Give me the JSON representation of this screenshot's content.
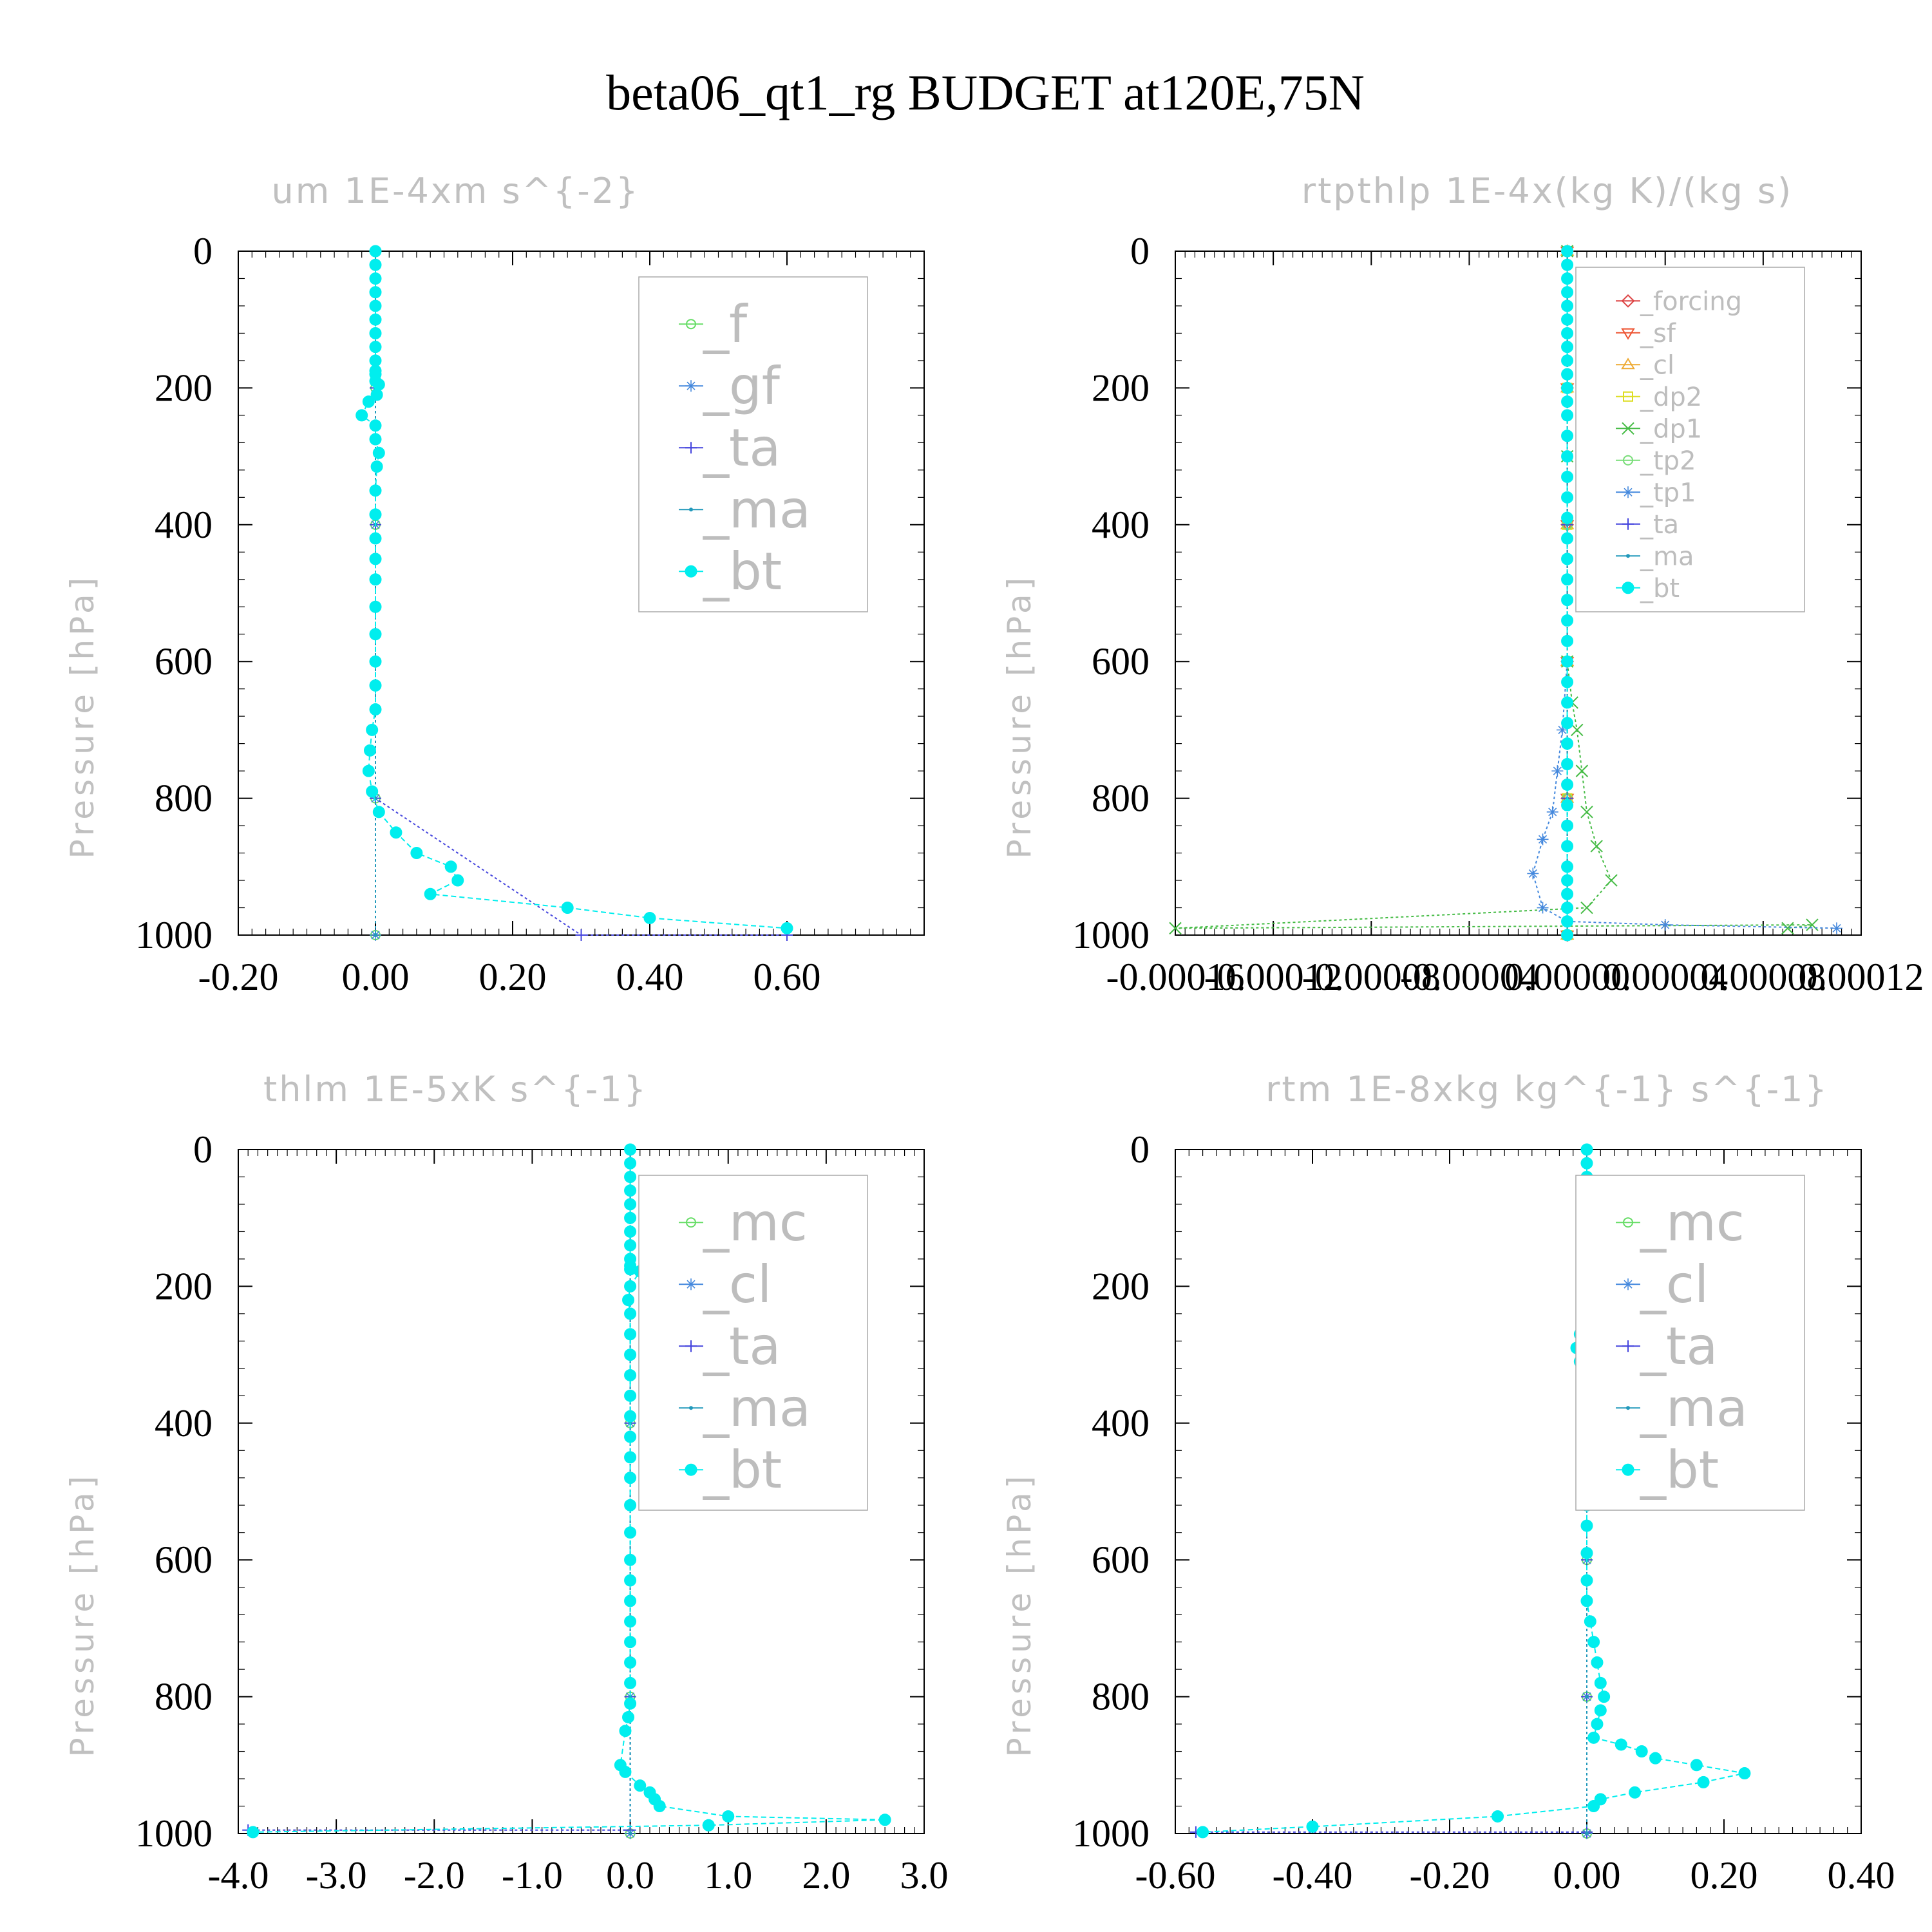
{
  "figure": {
    "title": "beta06_qt1_rg  BUDGET at120E,75N"
  },
  "chart_data": [
    {
      "type": "line",
      "title": "um   1E-4xm s^{-2}",
      "xlabel": "",
      "ylabel": "Pressure [hPa]",
      "xlim": [
        -0.2,
        0.8
      ],
      "ylim": [
        1000,
        0
      ],
      "xticks": [
        "-0.20",
        "0.00",
        "0.20",
        "0.40",
        "0.60"
      ],
      "xtick_values": [
        -0.2,
        0.0,
        0.2,
        0.4,
        0.6
      ],
      "yticks": [
        "0",
        "200",
        "400",
        "600",
        "800",
        "1000"
      ],
      "ytick_values": [
        0,
        200,
        400,
        600,
        800,
        1000
      ],
      "legend_position": "top-right",
      "legend_font": 80,
      "series": [
        {
          "name": "_f",
          "color": "#66dd66",
          "marker": "circle",
          "x": [
            0,
            0,
            0,
            0,
            0,
            0
          ],
          "y": [
            0,
            200,
            400,
            600,
            800,
            1000
          ]
        },
        {
          "name": "_gf",
          "color": "#4488dd",
          "marker": "star",
          "x": [
            0,
            0,
            0,
            0,
            0,
            0
          ],
          "y": [
            0,
            200,
            400,
            600,
            800,
            1000
          ]
        },
        {
          "name": "_ta",
          "color": "#4444dd",
          "marker": "plus",
          "x": [
            0,
            0,
            0,
            0,
            0,
            0.3,
            0.6
          ],
          "y": [
            0,
            200,
            400,
            600,
            800,
            1000,
            1000
          ]
        },
        {
          "name": "_ma",
          "color": "#2299bb",
          "marker": "dot",
          "x": [
            0,
            0,
            0,
            0,
            0,
            0
          ],
          "y": [
            0,
            200,
            400,
            600,
            800,
            1000
          ]
        },
        {
          "name": "_bt",
          "color": "#00eeee",
          "marker": "bigdot",
          "x": [
            0,
            0,
            0,
            0,
            0,
            0,
            0,
            0,
            0,
            0,
            0,
            0,
            0.005,
            0.002,
            -0.01,
            -0.02,
            0.0,
            0.0,
            0.005,
            0.002,
            0.0,
            0.0,
            0.0,
            0.0,
            0.0,
            0.0,
            0.0,
            0.0,
            0.0,
            0.0,
            -0.005,
            -0.008,
            -0.01,
            -0.005,
            0.005,
            0.03,
            0.06,
            0.11,
            0.12,
            0.08,
            0.28,
            0.4,
            0.6
          ],
          "y": [
            0,
            20,
            40,
            60,
            80,
            100,
            120,
            140,
            160,
            175,
            180,
            190,
            195,
            210,
            220,
            240,
            255,
            275,
            295,
            315,
            350,
            385,
            420,
            450,
            480,
            520,
            560,
            600,
            635,
            670,
            700,
            730,
            760,
            790,
            820,
            850,
            880,
            900,
            920,
            940,
            960,
            975,
            990
          ]
        }
      ]
    },
    {
      "type": "line",
      "title": "rtpthlp   1E-4x(kg K)/(kg s)",
      "xlabel": "",
      "ylabel": "Pressure [hPa]",
      "xlim": [
        -0.00016,
        0.00012
      ],
      "ylim": [
        1000,
        0
      ],
      "xticks": [
        "-0.00016",
        "-0.00012",
        "-0.00008",
        "-0.00004",
        "0.00000",
        "0.00004",
        "0.00008",
        "0.00012"
      ],
      "xtick_values": [
        -0.00016,
        -0.00012,
        -8e-05,
        -4e-05,
        0.0,
        4e-05,
        8e-05,
        0.00012
      ],
      "yticks": [
        "0",
        "200",
        "400",
        "600",
        "800",
        "1000"
      ],
      "ytick_values": [
        0,
        200,
        400,
        600,
        800,
        1000
      ],
      "legend_position": "top-right",
      "legend_font": 40,
      "series": [
        {
          "name": "_forcing",
          "color": "#dd4444",
          "marker": "diamond",
          "x": [
            0,
            0,
            0,
            0,
            0,
            0
          ],
          "y": [
            0,
            200,
            400,
            600,
            800,
            1000
          ]
        },
        {
          "name": "_sf",
          "color": "#ee5533",
          "marker": "tri-down",
          "x": [
            0,
            0,
            0,
            0,
            0,
            0
          ],
          "y": [
            0,
            200,
            400,
            600,
            800,
            1000
          ]
        },
        {
          "name": "_cl",
          "color": "#eeaa33",
          "marker": "tri-up",
          "x": [
            0,
            0,
            0,
            0,
            0,
            0
          ],
          "y": [
            0,
            200,
            400,
            600,
            800,
            1000
          ]
        },
        {
          "name": "_dp2",
          "color": "#dddd22",
          "marker": "square",
          "x": [
            0,
            0,
            0,
            0,
            0,
            0
          ],
          "y": [
            0,
            200,
            400,
            600,
            800,
            1000
          ]
        },
        {
          "name": "_dp1",
          "color": "#44bb44",
          "marker": "x",
          "x": [
            0,
            0,
            0,
            2e-06,
            4e-06,
            6e-06,
            8e-06,
            1.2e-05,
            1.8e-05,
            8e-06,
            -0.00016,
            0.0001,
            9e-05
          ],
          "y": [
            0,
            300,
            600,
            660,
            700,
            760,
            820,
            870,
            920,
            960,
            990,
            985,
            990
          ]
        },
        {
          "name": "_tp2",
          "color": "#77dd77",
          "marker": "circle",
          "x": [
            0,
            0,
            0,
            0,
            0,
            0
          ],
          "y": [
            0,
            200,
            400,
            600,
            800,
            1000
          ]
        },
        {
          "name": "_tp1",
          "color": "#4488dd",
          "marker": "star",
          "x": [
            0,
            0,
            0,
            -2e-06,
            -4e-06,
            -6e-06,
            -1e-05,
            -1.4e-05,
            -1e-05,
            0.0,
            4e-05,
            0.00011
          ],
          "y": [
            0,
            300,
            600,
            700,
            760,
            820,
            860,
            910,
            960,
            980,
            985,
            990
          ]
        },
        {
          "name": "_ta",
          "color": "#4444dd",
          "marker": "plus",
          "x": [
            0,
            0,
            0,
            0,
            0,
            0
          ],
          "y": [
            0,
            200,
            400,
            600,
            800,
            1000
          ]
        },
        {
          "name": "_ma",
          "color": "#2299bb",
          "marker": "dot",
          "x": [
            0,
            0,
            0,
            0,
            0,
            0
          ],
          "y": [
            0,
            200,
            400,
            600,
            800,
            1000
          ]
        },
        {
          "name": "_bt",
          "color": "#00eeee",
          "marker": "bigdot",
          "x": [
            0,
            0,
            0,
            0,
            0,
            0,
            0,
            0,
            0,
            0,
            0,
            0,
            0,
            0,
            0,
            0,
            0,
            0,
            0,
            0,
            0,
            0,
            0,
            0,
            0,
            0,
            0,
            0,
            0,
            0,
            0,
            0,
            0,
            0,
            0,
            0,
            0,
            0,
            0,
            0
          ],
          "y": [
            0,
            20,
            40,
            60,
            80,
            100,
            120,
            140,
            160,
            180,
            200,
            220,
            240,
            270,
            300,
            330,
            360,
            390,
            420,
            450,
            480,
            510,
            540,
            570,
            600,
            630,
            660,
            690,
            720,
            750,
            780,
            810,
            840,
            870,
            900,
            920,
            940,
            960,
            980,
            1000
          ]
        }
      ]
    },
    {
      "type": "line",
      "title": "thlm   1E-5xK s^{-1}",
      "xlabel": "",
      "ylabel": "Pressure [hPa]",
      "xlim": [
        -4.0,
        3.0
      ],
      "ylim": [
        1000,
        0
      ],
      "xticks": [
        "-4.0",
        "-3.0",
        "-2.0",
        "-1.0",
        "0.0",
        "1.0",
        "2.0",
        "3.0"
      ],
      "xtick_values": [
        -4.0,
        -3.0,
        -2.0,
        -1.0,
        0.0,
        1.0,
        2.0,
        3.0
      ],
      "yticks": [
        "0",
        "200",
        "400",
        "600",
        "800",
        "1000"
      ],
      "ytick_values": [
        0,
        200,
        400,
        600,
        800,
        1000
      ],
      "legend_position": "top-right",
      "legend_font": 80,
      "series": [
        {
          "name": "_mc",
          "color": "#66dd66",
          "marker": "circle",
          "x": [
            0,
            0,
            0,
            0,
            0,
            0
          ],
          "y": [
            0,
            200,
            400,
            600,
            800,
            1000
          ]
        },
        {
          "name": "_cl",
          "color": "#4488dd",
          "marker": "star",
          "x": [
            0,
            0,
            0,
            0,
            0,
            0
          ],
          "y": [
            0,
            200,
            400,
            600,
            800,
            1000
          ]
        },
        {
          "name": "_ta",
          "color": "#4444dd",
          "marker": "plus",
          "x": [
            0,
            0,
            0,
            0,
            0,
            0,
            -3.9
          ],
          "y": [
            0,
            200,
            400,
            600,
            800,
            995,
            995
          ]
        },
        {
          "name": "_ma",
          "color": "#2299bb",
          "marker": "dot",
          "x": [
            0,
            0,
            0,
            0,
            0,
            0
          ],
          "y": [
            0,
            200,
            400,
            600,
            800,
            1000
          ]
        },
        {
          "name": "_bt",
          "color": "#00eeee",
          "marker": "bigdot",
          "x": [
            0,
            0,
            0,
            0,
            0,
            0,
            0,
            0,
            0,
            0,
            0,
            0.1,
            0.0,
            -0.02,
            0,
            0,
            0,
            0,
            0,
            0,
            0,
            0,
            0,
            0,
            0,
            0,
            0,
            0,
            0,
            0,
            0,
            0,
            0,
            -0.02,
            -0.05,
            -0.1,
            -0.05,
            0.1,
            0.2,
            0.25,
            0.3,
            1.0,
            2.6,
            0.8,
            -3.85
          ],
          "y": [
            0,
            20,
            40,
            60,
            80,
            100,
            120,
            140,
            160,
            170,
            175,
            178,
            200,
            220,
            240,
            270,
            300,
            330,
            360,
            390,
            420,
            450,
            480,
            520,
            560,
            600,
            630,
            660,
            690,
            720,
            750,
            780,
            810,
            830,
            850,
            900,
            910,
            930,
            940,
            950,
            960,
            975,
            980,
            988,
            998
          ]
        }
      ]
    },
    {
      "type": "line",
      "title": "rtm   1E-8xkg kg^{-1} s^{-1}",
      "xlabel": "",
      "ylabel": "Pressure [hPa]",
      "xlim": [
        -0.6,
        0.4
      ],
      "ylim": [
        1000,
        0
      ],
      "xticks": [
        "-0.60",
        "-0.40",
        "-0.20",
        "0.00",
        "0.20",
        "0.40"
      ],
      "xtick_values": [
        -0.6,
        -0.4,
        -0.2,
        0.0,
        0.2,
        0.4
      ],
      "yticks": [
        "0",
        "200",
        "400",
        "600",
        "800",
        "1000"
      ],
      "ytick_values": [
        0,
        200,
        400,
        600,
        800,
        1000
      ],
      "legend_position": "top-right",
      "legend_font": 80,
      "series": [
        {
          "name": "_mc",
          "color": "#66dd66",
          "marker": "circle",
          "x": [
            0,
            0,
            0,
            0,
            0,
            0
          ],
          "y": [
            0,
            200,
            400,
            600,
            800,
            1000
          ]
        },
        {
          "name": "_cl",
          "color": "#4488dd",
          "marker": "star",
          "x": [
            0,
            0,
            0,
            0,
            0,
            0
          ],
          "y": [
            0,
            200,
            400,
            600,
            800,
            1000
          ]
        },
        {
          "name": "_ta",
          "color": "#4444dd",
          "marker": "plus",
          "x": [
            0,
            0,
            0,
            0,
            0,
            0,
            -0.57
          ],
          "y": [
            0,
            200,
            400,
            600,
            800,
            998,
            998
          ]
        },
        {
          "name": "_ma",
          "color": "#2299bb",
          "marker": "dot",
          "x": [
            0,
            0,
            0,
            0,
            0,
            0
          ],
          "y": [
            0,
            200,
            400,
            600,
            800,
            1000
          ]
        },
        {
          "name": "_bt",
          "color": "#00eeee",
          "marker": "bigdot",
          "x": [
            0,
            0,
            0,
            0,
            0,
            0,
            0,
            0,
            0,
            0,
            0.01,
            0.02,
            0.01,
            -0.005,
            -0.01,
            -0.015,
            -0.01,
            -0.005,
            0,
            0,
            0,
            0,
            0,
            0,
            0,
            0,
            0,
            0,
            0.005,
            0.01,
            0.015,
            0.02,
            0.025,
            0.02,
            0.015,
            0.01,
            0.05,
            0.08,
            0.1,
            0.16,
            0.23,
            0.17,
            0.07,
            0.02,
            0.01,
            -0.13,
            -0.4,
            -0.56
          ],
          "y": [
            0,
            20,
            40,
            60,
            80,
            100,
            120,
            140,
            160,
            170,
            180,
            190,
            210,
            240,
            270,
            290,
            310,
            340,
            370,
            400,
            430,
            460,
            490,
            520,
            550,
            590,
            630,
            660,
            690,
            720,
            750,
            780,
            800,
            820,
            840,
            860,
            870,
            880,
            890,
            900,
            912,
            925,
            940,
            950,
            960,
            975,
            990,
            998
          ]
        }
      ]
    }
  ]
}
